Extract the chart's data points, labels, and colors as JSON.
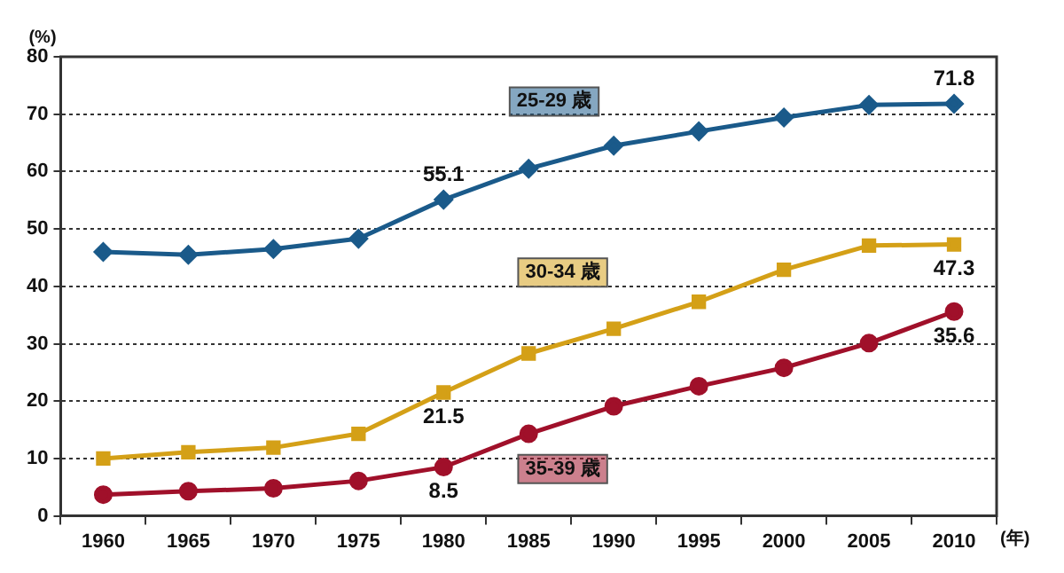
{
  "chart_data": {
    "type": "line",
    "ylabel": "(%)",
    "xlabel": "(年)",
    "categories": [
      "1960",
      "1965",
      "1970",
      "1975",
      "1980",
      "1985",
      "1990",
      "1995",
      "2000",
      "2005",
      "2010"
    ],
    "ylim": [
      0,
      80
    ],
    "yticks": [
      0,
      10,
      20,
      30,
      40,
      50,
      60,
      70,
      80
    ],
    "grid": "y",
    "line_style": "solid",
    "legend": false,
    "series": [
      {
        "name": "25-29 歳",
        "color": "#1a5a8a",
        "marker": "diamond",
        "values": [
          46.0,
          45.5,
          46.5,
          48.3,
          55.1,
          60.5,
          64.5,
          67.0,
          69.4,
          71.6,
          71.8
        ],
        "value_labels": [
          null,
          null,
          null,
          null,
          "55.1",
          null,
          null,
          null,
          null,
          null,
          "71.8"
        ]
      },
      {
        "name": "30-34 歳",
        "color": "#d4a017",
        "marker": "square",
        "values": [
          10.0,
          11.1,
          11.9,
          14.3,
          21.5,
          28.3,
          32.6,
          37.3,
          42.9,
          47.1,
          47.3
        ],
        "value_labels": [
          null,
          null,
          null,
          null,
          "21.5",
          null,
          null,
          null,
          null,
          null,
          "47.3"
        ]
      },
      {
        "name": "35-39 歳",
        "color": "#a0102a",
        "marker": "circle",
        "values": [
          3.7,
          4.3,
          4.8,
          6.1,
          8.5,
          14.3,
          19.1,
          22.6,
          25.8,
          30.1,
          35.6
        ],
        "value_labels": [
          null,
          null,
          null,
          null,
          "8.5",
          null,
          null,
          null,
          null,
          null,
          "35.6"
        ]
      }
    ]
  }
}
